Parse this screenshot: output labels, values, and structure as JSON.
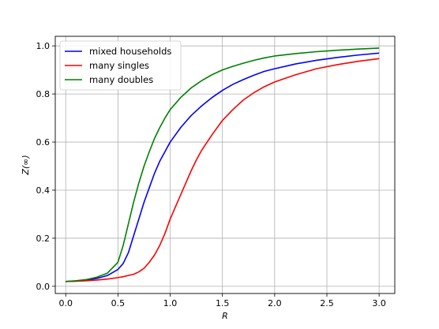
{
  "chart_data": {
    "type": "line",
    "xlabel": "R",
    "ylabel": "Z(∞)",
    "xlim": [
      -0.1,
      3.15
    ],
    "ylim": [
      -0.03,
      1.04
    ],
    "grid": true,
    "legend_position": "top-left",
    "x_ticks": [
      "0.0",
      "0.5",
      "1.0",
      "1.5",
      "2.0",
      "2.5",
      "3.0"
    ],
    "y_ticks": [
      "0.0",
      "0.2",
      "0.4",
      "0.6",
      "0.8",
      "1.0"
    ],
    "x": [
      0.0,
      0.1,
      0.2,
      0.3,
      0.4,
      0.5,
      0.55,
      0.6,
      0.65,
      0.7,
      0.75,
      0.8,
      0.85,
      0.9,
      0.95,
      1.0,
      1.05,
      1.1,
      1.15,
      1.2,
      1.25,
      1.3,
      1.4,
      1.5,
      1.6,
      1.7,
      1.8,
      1.9,
      2.0,
      2.2,
      2.4,
      2.6,
      2.8,
      3.0
    ],
    "series": [
      {
        "name": "mixed households",
        "color": "#0000ff",
        "values": [
          0.02,
          0.022,
          0.026,
          0.033,
          0.045,
          0.07,
          0.095,
          0.14,
          0.21,
          0.28,
          0.35,
          0.41,
          0.47,
          0.52,
          0.56,
          0.6,
          0.63,
          0.66,
          0.685,
          0.71,
          0.73,
          0.75,
          0.785,
          0.815,
          0.84,
          0.86,
          0.878,
          0.894,
          0.905,
          0.925,
          0.94,
          0.952,
          0.962,
          0.97
        ]
      },
      {
        "name": "many singles",
        "color": "#ff0000",
        "values": [
          0.02,
          0.021,
          0.023,
          0.026,
          0.03,
          0.036,
          0.04,
          0.045,
          0.05,
          0.06,
          0.075,
          0.1,
          0.13,
          0.17,
          0.22,
          0.28,
          0.33,
          0.38,
          0.43,
          0.48,
          0.525,
          0.565,
          0.63,
          0.69,
          0.735,
          0.775,
          0.805,
          0.83,
          0.85,
          0.88,
          0.905,
          0.922,
          0.936,
          0.947
        ]
      },
      {
        "name": "many doubles",
        "color": "#008000",
        "values": [
          0.02,
          0.023,
          0.028,
          0.038,
          0.055,
          0.1,
          0.17,
          0.26,
          0.35,
          0.43,
          0.5,
          0.56,
          0.615,
          0.66,
          0.7,
          0.735,
          0.76,
          0.785,
          0.805,
          0.825,
          0.84,
          0.855,
          0.88,
          0.9,
          0.915,
          0.928,
          0.94,
          0.95,
          0.958,
          0.968,
          0.976,
          0.982,
          0.987,
          0.991
        ]
      }
    ]
  }
}
